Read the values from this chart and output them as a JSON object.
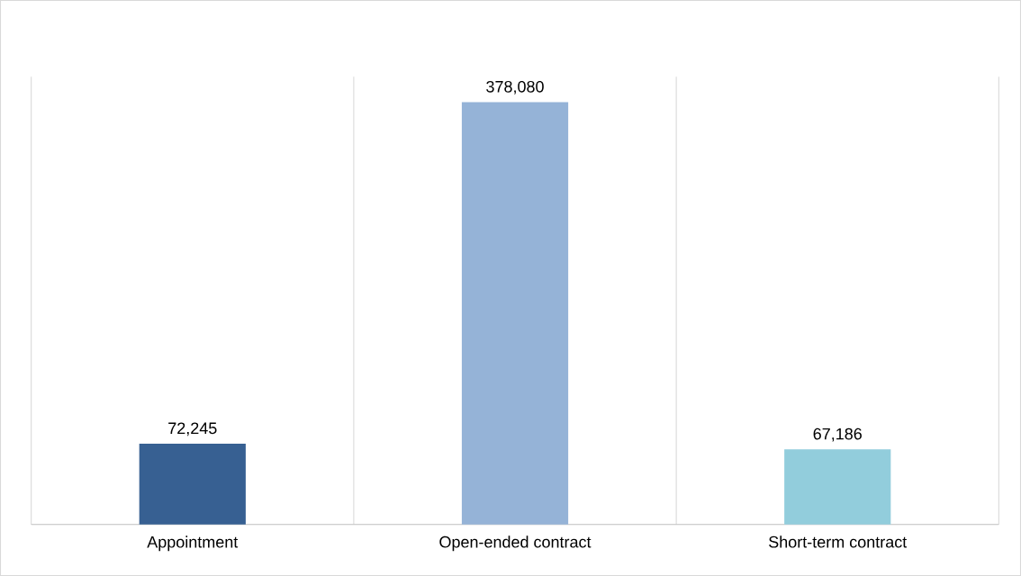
{
  "chart_data": {
    "type": "bar",
    "categories": [
      "Appointment",
      "Open-ended contract",
      "Short-term contract"
    ],
    "values": [
      72245,
      378080,
      67186
    ],
    "colors": [
      "#376092",
      "#95b3d7",
      "#92cddc"
    ],
    "value_labels": [
      "72,245",
      "378,080",
      "67,186"
    ],
    "grid": "x"
  }
}
